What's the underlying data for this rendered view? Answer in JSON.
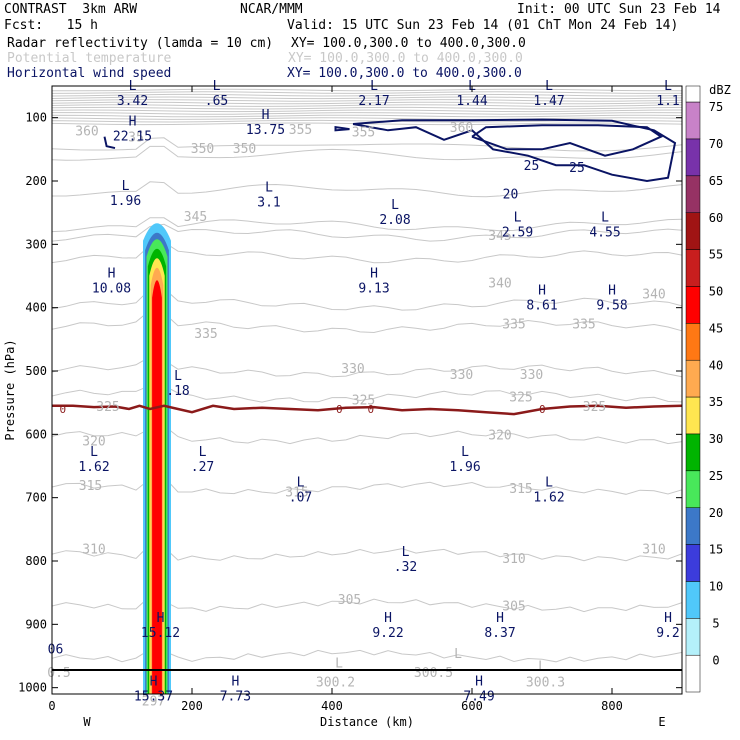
{
  "header": {
    "model": "CONTRAST  3km ARW",
    "org": "NCAR/MMM",
    "init": "Init: 00 UTC Sun 23 Feb 14",
    "fcst": "Fcst:   15 h",
    "valid": "Valid: 15 UTC Sun 23 Feb 14 (01 ChT Mon 24 Feb 14)",
    "fields": [
      {
        "name": "Radar reflectivity (lamda = 10 cm)",
        "xy": "XY= 100.0,300.0 to 400.0,300.0"
      },
      {
        "name": "Potential temperature",
        "xy": "XY= 100.0,300.0 to 400.0,300.0"
      },
      {
        "name": "Horizontal wind speed",
        "xy": "XY= 100.0,300.0 to 400.0,300.0"
      }
    ]
  },
  "chart_data": {
    "type": "cross-section",
    "xlabel": "Distance (km)",
    "ylabel": "Pressure (hPa)",
    "xlim": [
      0,
      900
    ],
    "ylim": [
      1010,
      50
    ],
    "x_ticks": [
      0,
      200,
      400,
      600,
      800
    ],
    "y_ticks": [
      100,
      200,
      300,
      400,
      500,
      600,
      700,
      800,
      900,
      1000
    ],
    "west_label": "W",
    "east_label": "E",
    "colorbar": {
      "unit": "dBZ",
      "levels": [
        0,
        5,
        10,
        15,
        20,
        25,
        30,
        35,
        40,
        45,
        50,
        55,
        60,
        65,
        70,
        75
      ],
      "colors": [
        "#ffffff",
        "#b4f0fa",
        "#50c8fa",
        "#3c3cdc",
        "#3c78c8",
        "#48e85a",
        "#00b400",
        "#ffe650",
        "#ffaa50",
        "#ff7814",
        "#ff0000",
        "#c81e1e",
        "#a01414",
        "#963264",
        "#7832aa",
        "#c882c8"
      ]
    },
    "theta_labels": [
      {
        "x": 50,
        "p": 120,
        "text": "360"
      },
      {
        "x": 120,
        "p": 130,
        "text": "35"
      },
      {
        "x": 215,
        "p": 148,
        "text": "350"
      },
      {
        "x": 275,
        "p": 148,
        "text": "350"
      },
      {
        "x": 355,
        "p": 118,
        "text": "355"
      },
      {
        "x": 445,
        "p": 122,
        "text": "355"
      },
      {
        "x": 585,
        "p": 115,
        "text": "360"
      },
      {
        "x": 205,
        "p": 255,
        "text": "345"
      },
      {
        "x": 640,
        "p": 285,
        "text": "345"
      },
      {
        "x": 640,
        "p": 360,
        "text": "340"
      },
      {
        "x": 860,
        "p": 378,
        "text": "340"
      },
      {
        "x": 220,
        "p": 440,
        "text": "335"
      },
      {
        "x": 660,
        "p": 425,
        "text": "335"
      },
      {
        "x": 760,
        "p": 425,
        "text": "335"
      },
      {
        "x": 430,
        "p": 495,
        "text": "330"
      },
      {
        "x": 585,
        "p": 505,
        "text": "330"
      },
      {
        "x": 685,
        "p": 505,
        "text": "330"
      },
      {
        "x": 80,
        "p": 555,
        "text": "325"
      },
      {
        "x": 445,
        "p": 545,
        "text": "325"
      },
      {
        "x": 670,
        "p": 540,
        "text": "325"
      },
      {
        "x": 775,
        "p": 555,
        "text": "325"
      },
      {
        "x": 60,
        "p": 610,
        "text": "320"
      },
      {
        "x": 640,
        "p": 600,
        "text": "320"
      },
      {
        "x": 55,
        "p": 680,
        "text": "315"
      },
      {
        "x": 350,
        "p": 690,
        "text": "315"
      },
      {
        "x": 670,
        "p": 685,
        "text": "315"
      },
      {
        "x": 60,
        "p": 780,
        "text": "310"
      },
      {
        "x": 660,
        "p": 795,
        "text": "310"
      },
      {
        "x": 860,
        "p": 780,
        "text": "310"
      },
      {
        "x": 425,
        "p": 860,
        "text": "305"
      },
      {
        "x": 660,
        "p": 870,
        "text": "305"
      },
      {
        "x": 10,
        "p": 975,
        "text": "0.5"
      },
      {
        "x": 545,
        "p": 975,
        "text": "300.5"
      },
      {
        "x": 405,
        "p": 990,
        "text": "300.2"
      },
      {
        "x": 705,
        "p": 990,
        "text": "300.3"
      },
      {
        "x": 145,
        "p": 1020,
        "text": "297"
      },
      {
        "x": 410,
        "p": 960,
        "text": "L"
      },
      {
        "x": 580,
        "p": 945,
        "text": "L"
      },
      {
        "x": 700,
        "p": 965,
        "text": "L"
      }
    ],
    "wind_extrema": [
      {
        "x": 115,
        "p": 72,
        "sym": "L",
        "value": "3.42"
      },
      {
        "x": 235,
        "p": 72,
        "sym": "L",
        "value": ".65"
      },
      {
        "x": 460,
        "p": 72,
        "sym": "L",
        "value": "2.17"
      },
      {
        "x": 600,
        "p": 72,
        "sym": "L",
        "value": "1.44"
      },
      {
        "x": 710,
        "p": 72,
        "sym": "L",
        "value": "1.47"
      },
      {
        "x": 880,
        "p": 72,
        "sym": "L",
        "value": "1.1"
      },
      {
        "x": 115,
        "p": 128,
        "sym": "H",
        "value": "22.15"
      },
      {
        "x": 305,
        "p": 118,
        "sym": "H",
        "value": "13.75"
      },
      {
        "x": 105,
        "p": 230,
        "sym": "L",
        "value": "1.96"
      },
      {
        "x": 310,
        "p": 232,
        "sym": "L",
        "value": "3.1"
      },
      {
        "x": 490,
        "p": 260,
        "sym": "L",
        "value": "2.08"
      },
      {
        "x": 665,
        "p": 280,
        "sym": "L",
        "value": "2.59"
      },
      {
        "x": 790,
        "p": 280,
        "sym": "L",
        "value": "4.55"
      },
      {
        "x": 85,
        "p": 368,
        "sym": "H",
        "value": "10.08"
      },
      {
        "x": 460,
        "p": 368,
        "sym": "H",
        "value": "9.13"
      },
      {
        "x": 700,
        "p": 395,
        "sym": "H",
        "value": "8.61"
      },
      {
        "x": 800,
        "p": 395,
        "sym": "H",
        "value": "9.58"
      },
      {
        "x": 180,
        "p": 530,
        "sym": "L",
        "value": ".18"
      },
      {
        "x": 60,
        "p": 650,
        "sym": "L",
        "value": "1.62"
      },
      {
        "x": 215,
        "p": 650,
        "sym": "L",
        "value": ".27"
      },
      {
        "x": 355,
        "p": 698,
        "sym": "L",
        "value": ".07"
      },
      {
        "x": 590,
        "p": 650,
        "sym": "L",
        "value": "1.96"
      },
      {
        "x": 710,
        "p": 698,
        "sym": "L",
        "value": "1.62"
      },
      {
        "x": 505,
        "p": 808,
        "sym": "L",
        "value": ".32"
      },
      {
        "x": 155,
        "p": 912,
        "sym": "H",
        "value": "15.12"
      },
      {
        "x": 480,
        "p": 912,
        "sym": "H",
        "value": "9.22"
      },
      {
        "x": 640,
        "p": 912,
        "sym": "H",
        "value": "8.37"
      },
      {
        "x": 880,
        "p": 912,
        "sym": "H",
        "value": "9.2"
      },
      {
        "x": 5,
        "p": 938,
        "sym": "",
        "value": "06"
      },
      {
        "x": 145,
        "p": 1012,
        "sym": "H",
        "value": "15.37"
      },
      {
        "x": 262,
        "p": 1012,
        "sym": "H",
        "value": "7.73"
      },
      {
        "x": 610,
        "p": 1012,
        "sym": "H",
        "value": "7.49"
      }
    ],
    "wind_contour_labels": [
      {
        "x": 685,
        "p": 175,
        "text": "25"
      },
      {
        "x": 750,
        "p": 178,
        "text": "25"
      },
      {
        "x": 655,
        "p": 220,
        "text": "20"
      }
    ],
    "freezing_level": {
      "label": "0",
      "label_x": [
        15,
        410,
        455,
        700
      ],
      "x": [
        0,
        30,
        60,
        90,
        110,
        125,
        140,
        160,
        180,
        200,
        230,
        260,
        300,
        340,
        380,
        420,
        460,
        500,
        540,
        580,
        620,
        660,
        700,
        740,
        780,
        820,
        860,
        900
      ],
      "p": [
        555,
        555,
        557,
        556,
        560,
        555,
        560,
        555,
        560,
        565,
        555,
        560,
        558,
        560,
        562,
        558,
        557,
        562,
        560,
        562,
        565,
        568,
        560,
        556,
        555,
        558,
        556,
        555
      ]
    },
    "reflectivity_core": {
      "x_center": 150,
      "top_p": 255,
      "bottom_p": 1010,
      "max_dbz": 55
    }
  }
}
